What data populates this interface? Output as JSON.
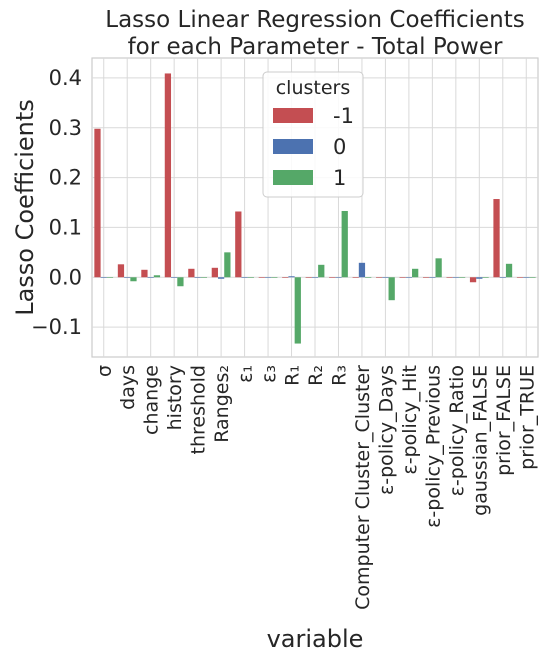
{
  "chart_data": {
    "type": "bar",
    "title": "Lasso Linear Regression Coefficients\nfor each Parameter - Total Power",
    "xlabel": "variable",
    "ylabel": "Lasso Coefficients",
    "ylim": [
      -0.16,
      0.44
    ],
    "yticks": [
      -0.1,
      0.0,
      0.1,
      0.2,
      0.3,
      0.4
    ],
    "ytick_labels": [
      "−0.1",
      "0.0",
      "0.1",
      "0.2",
      "0.3",
      "0.4"
    ],
    "grid": true,
    "legend": {
      "title": "clusters",
      "placement": "top-center"
    },
    "categories": [
      "σ",
      "days",
      "change",
      "history",
      "threshold",
      "Ranges₂",
      "ε₁",
      "ε₃",
      "R₁",
      "R₂",
      "R₃",
      "Computer Cluster_Cluster",
      "ε-policy_Days",
      "ε-policy_Hit",
      "ε-policy_Previous",
      "ε-policy_Ratio",
      "gaussian_FALSE",
      "prior_FALSE",
      "prior_TRUE"
    ],
    "series": [
      {
        "name": "-1",
        "color": "#c44e52",
        "values": [
          0.298,
          0.026,
          0.015,
          0.409,
          0.017,
          0.019,
          0.132,
          0.0,
          0.0,
          0.0,
          0.0,
          0.0,
          0.0,
          0.0,
          0.0,
          0.0,
          -0.01,
          0.157,
          0.0
        ]
      },
      {
        "name": "0",
        "color": "#4c72b0",
        "values": [
          0.0,
          0.0,
          0.0,
          0.0,
          0.0,
          -0.003,
          0.0,
          0.0,
          0.002,
          0.0,
          0.0,
          0.029,
          0.0,
          0.0,
          0.0,
          0.0,
          -0.003,
          0.0,
          0.0
        ]
      },
      {
        "name": "1",
        "color": "#55a868",
        "values": [
          0.0,
          -0.008,
          0.004,
          -0.018,
          0.0,
          0.05,
          0.0,
          0.0,
          -0.133,
          0.025,
          0.133,
          0.0,
          -0.046,
          0.017,
          0.038,
          0.0,
          0.0,
          0.027,
          0.0
        ]
      }
    ]
  }
}
